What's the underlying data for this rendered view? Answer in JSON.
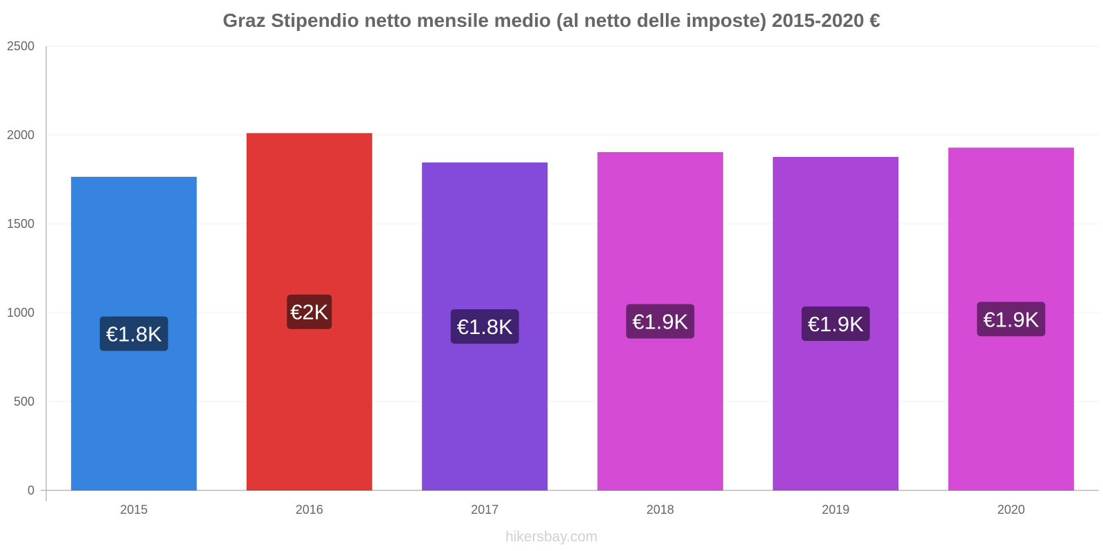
{
  "chart_data": {
    "type": "bar",
    "title": "Graz Stipendio netto mensile medio (al netto delle imposte) 2015-2020 €",
    "categories": [
      "2015",
      "2016",
      "2017",
      "2018",
      "2019",
      "2020"
    ],
    "values": [
      1764,
      2010,
      1845,
      1903,
      1876,
      1928
    ],
    "data_labels": [
      "€1.8K",
      "€2K",
      "€1.8K",
      "€1.9K",
      "€1.9K",
      "€1.9K"
    ],
    "bar_colors": [
      "#3784e0",
      "#e03737",
      "#844bda",
      "#d64bd6",
      "#a946d8",
      "#d64bd6"
    ],
    "label_bg_colors": [
      "#1c3f6b",
      "#6b1c1c",
      "#3f2370",
      "#6b2370",
      "#52206b",
      "#6b2370"
    ],
    "yticks": [
      0,
      500,
      1000,
      1500,
      2000,
      2500
    ],
    "ylim": [
      0,
      2500
    ],
    "xlabel": "",
    "ylabel": "",
    "grid": true,
    "legend": "none"
  },
  "watermark": "hikersbay.com"
}
